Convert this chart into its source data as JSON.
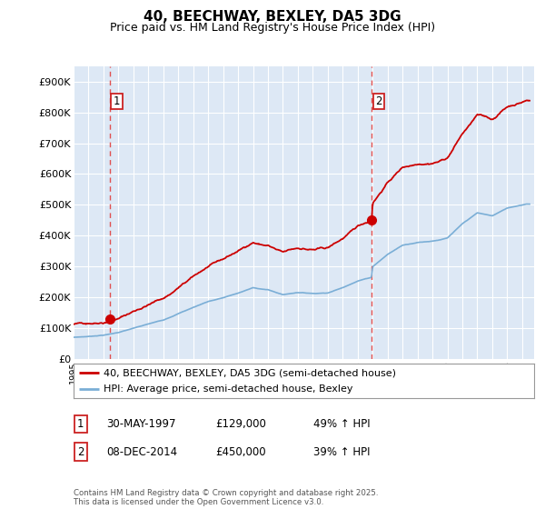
{
  "title": "40, BEECHWAY, BEXLEY, DA5 3DG",
  "subtitle": "Price paid vs. HM Land Registry's House Price Index (HPI)",
  "ylim": [
    0,
    950000
  ],
  "yticks": [
    0,
    100000,
    200000,
    300000,
    400000,
    500000,
    600000,
    700000,
    800000,
    900000
  ],
  "ytick_labels": [
    "£0",
    "£100K",
    "£200K",
    "£300K",
    "£400K",
    "£500K",
    "£600K",
    "£700K",
    "£800K",
    "£900K"
  ],
  "background_color": "#ffffff",
  "plot_bg_color": "#dde8f5",
  "grid_color": "#ffffff",
  "sale1_date": 1997.41,
  "sale1_price": 129000,
  "sale2_date": 2014.93,
  "sale2_price": 450000,
  "red_line_color": "#cc0000",
  "blue_line_color": "#7aaed6",
  "dashed_line_color": "#e05050",
  "legend_label1": "40, BEECHWAY, BEXLEY, DA5 3DG (semi-detached house)",
  "legend_label2": "HPI: Average price, semi-detached house, Bexley",
  "footer": "Contains HM Land Registry data © Crown copyright and database right 2025.\nThis data is licensed under the Open Government Licence v3.0.",
  "title_fontsize": 11,
  "subtitle_fontsize": 9
}
